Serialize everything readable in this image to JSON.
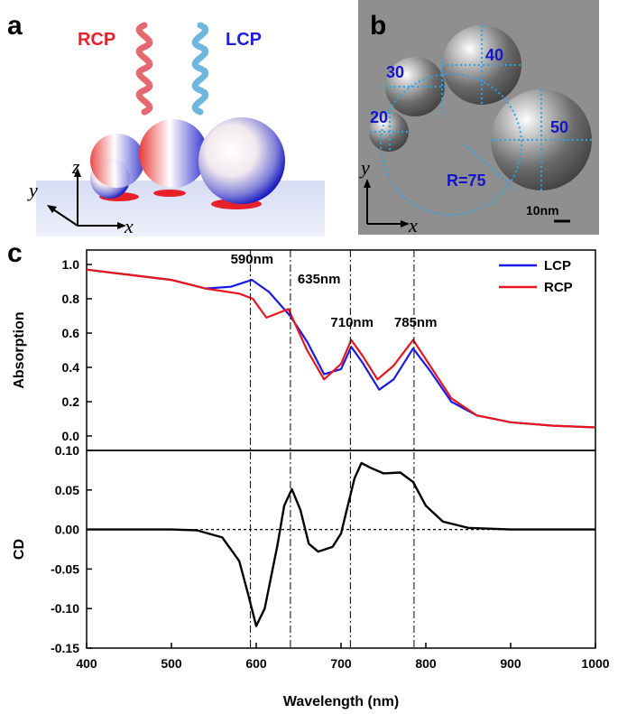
{
  "panels": {
    "a": {
      "letter": "a",
      "rcp_label": "RCP",
      "lcp_label": "LCP",
      "axis_x": "x",
      "axis_y": "y",
      "axis_z": "z",
      "colors": {
        "rcp": "#e8202a",
        "lcp": "#2020d8"
      }
    },
    "b": {
      "letter": "b",
      "diameters": [
        "20",
        "30",
        "40",
        "50"
      ],
      "radius_label": "R=75",
      "scale_label": "10nm",
      "axis_x": "x",
      "axis_y": "y"
    },
    "c": {
      "letter": "c"
    }
  },
  "chart_data": [
    {
      "type": "line",
      "ylabel": "Absorption",
      "xlim": [
        400,
        1000
      ],
      "ylim": [
        0.0,
        1.0
      ],
      "yticks": [
        "0.0",
        "0.2",
        "0.4",
        "0.6",
        "0.8",
        "1.0"
      ],
      "legend": {
        "position": "top-right"
      },
      "series": [
        {
          "name": "LCP",
          "color": "#1a1ae6",
          "points": [
            [
              400,
              0.97
            ],
            [
              450,
              0.94
            ],
            [
              500,
              0.91
            ],
            [
              540,
              0.86
            ],
            [
              570,
              0.87
            ],
            [
              595,
              0.91
            ],
            [
              615,
              0.84
            ],
            [
              640,
              0.7
            ],
            [
              660,
              0.55
            ],
            [
              680,
              0.36
            ],
            [
              700,
              0.39
            ],
            [
              712,
              0.52
            ],
            [
              725,
              0.43
            ],
            [
              745,
              0.27
            ],
            [
              762,
              0.33
            ],
            [
              785,
              0.51
            ],
            [
              805,
              0.38
            ],
            [
              830,
              0.2
            ],
            [
              860,
              0.12
            ],
            [
              900,
              0.08
            ],
            [
              950,
              0.06
            ],
            [
              1000,
              0.05
            ]
          ]
        },
        {
          "name": "RCP",
          "color": "#e8161c",
          "points": [
            [
              400,
              0.97
            ],
            [
              450,
              0.94
            ],
            [
              500,
              0.91
            ],
            [
              540,
              0.86
            ],
            [
              580,
              0.83
            ],
            [
              596,
              0.8
            ],
            [
              612,
              0.69
            ],
            [
              638,
              0.74
            ],
            [
              660,
              0.5
            ],
            [
              680,
              0.33
            ],
            [
              700,
              0.42
            ],
            [
              712,
              0.56
            ],
            [
              725,
              0.47
            ],
            [
              743,
              0.33
            ],
            [
              762,
              0.41
            ],
            [
              785,
              0.56
            ],
            [
              805,
              0.41
            ],
            [
              830,
              0.22
            ],
            [
              860,
              0.12
            ],
            [
              900,
              0.08
            ],
            [
              950,
              0.06
            ],
            [
              1000,
              0.05
            ]
          ]
        }
      ],
      "annotations": [
        {
          "text": "590nm",
          "x": 590
        },
        {
          "text": "635nm",
          "x": 635
        },
        {
          "text": "710nm",
          "x": 710
        },
        {
          "text": "785nm",
          "x": 785
        }
      ]
    },
    {
      "type": "line",
      "xlabel": "Wavelength (nm)",
      "ylabel": "CD",
      "xlim": [
        400,
        1000
      ],
      "ylim": [
        -0.15,
        0.1
      ],
      "xticks": [
        "400",
        "500",
        "600",
        "700",
        "800",
        "900",
        "1000"
      ],
      "yticks": [
        "-0.15",
        "-0.10",
        "-0.05",
        "0.00",
        "0.05",
        "0.10"
      ],
      "series": [
        {
          "color": "#000000",
          "points": [
            [
              400,
              0.0
            ],
            [
              500,
              0.0
            ],
            [
              530,
              -0.001
            ],
            [
              560,
              -0.01
            ],
            [
              580,
              -0.04
            ],
            [
              590,
              -0.08
            ],
            [
              600,
              -0.122
            ],
            [
              610,
              -0.1
            ],
            [
              625,
              -0.02
            ],
            [
              633,
              0.03
            ],
            [
              642,
              0.051
            ],
            [
              652,
              0.025
            ],
            [
              662,
              -0.018
            ],
            [
              673,
              -0.028
            ],
            [
              690,
              -0.022
            ],
            [
              700,
              -0.005
            ],
            [
              708,
              0.03
            ],
            [
              716,
              0.065
            ],
            [
              724,
              0.084
            ],
            [
              735,
              0.078
            ],
            [
              750,
              0.071
            ],
            [
              770,
              0.072
            ],
            [
              785,
              0.06
            ],
            [
              800,
              0.03
            ],
            [
              820,
              0.01
            ],
            [
              850,
              0.002
            ],
            [
              900,
              0.0
            ],
            [
              1000,
              0.0
            ]
          ]
        }
      ]
    }
  ]
}
